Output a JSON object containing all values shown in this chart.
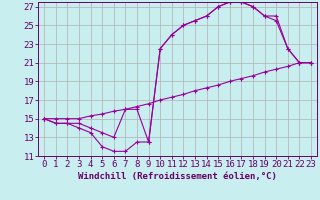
{
  "xlabel": "Windchill (Refroidissement éolien,°C)",
  "bg_color": "#c8eef0",
  "grid_color": "#b0b0b0",
  "line_color": "#990099",
  "xlim": [
    -0.5,
    23.5
  ],
  "ylim": [
    11,
    27.5
  ],
  "yticks": [
    11,
    13,
    15,
    17,
    19,
    21,
    23,
    25,
    27
  ],
  "xticks": [
    0,
    1,
    2,
    3,
    4,
    5,
    6,
    7,
    8,
    9,
    10,
    11,
    12,
    13,
    14,
    15,
    16,
    17,
    18,
    19,
    20,
    21,
    22,
    23
  ],
  "line1_x": [
    0,
    1,
    2,
    3,
    4,
    5,
    6,
    7,
    8,
    9,
    10,
    11,
    12,
    13,
    14,
    15,
    16,
    17,
    18,
    19,
    20,
    21,
    22,
    23
  ],
  "line1_y": [
    15.0,
    15.0,
    15.0,
    15.0,
    15.3,
    15.5,
    15.8,
    16.0,
    16.3,
    16.6,
    17.0,
    17.3,
    17.6,
    18.0,
    18.3,
    18.6,
    19.0,
    19.3,
    19.6,
    20.0,
    20.3,
    20.6,
    21.0,
    21.0
  ],
  "line2_x": [
    0,
    1,
    2,
    3,
    4,
    5,
    6,
    7,
    8,
    9,
    10,
    11,
    12,
    13,
    14,
    15,
    16,
    17,
    18,
    19,
    20,
    21,
    22,
    23
  ],
  "line2_y": [
    15.0,
    14.5,
    14.5,
    14.5,
    14.0,
    13.5,
    13.0,
    16.0,
    16.0,
    12.5,
    22.5,
    24.0,
    25.0,
    25.5,
    26.0,
    27.0,
    27.5,
    27.5,
    27.0,
    26.0,
    26.0,
    22.5,
    21.0,
    21.0
  ],
  "line3_x": [
    0,
    1,
    2,
    3,
    4,
    5,
    6,
    7,
    8,
    9,
    10,
    11,
    12,
    13,
    14,
    15,
    16,
    17,
    18,
    19,
    20,
    21,
    22,
    23
  ],
  "line3_y": [
    15.0,
    14.5,
    14.5,
    14.0,
    13.5,
    12.0,
    11.5,
    11.5,
    12.5,
    12.5,
    22.5,
    24.0,
    25.0,
    25.5,
    26.0,
    27.0,
    27.5,
    27.5,
    27.0,
    26.0,
    25.5,
    22.5,
    21.0,
    21.0
  ],
  "font_size": 6.5
}
